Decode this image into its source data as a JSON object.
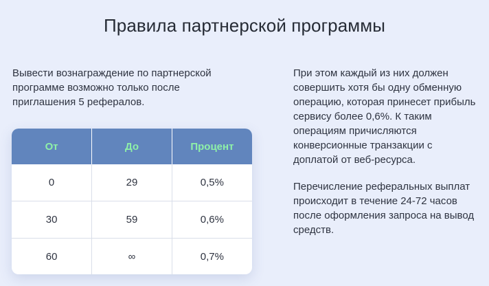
{
  "page": {
    "title": "Правила партнерской программы"
  },
  "intro": {
    "text": "Вывести вознаграждение по партнерской программе возможно только после приглашения 5 рефералов."
  },
  "right": {
    "paragraph1": "При этом каждый из них должен совершить хотя бы одну обменную операцию, которая принесет прибыль сервису более 0,6%. К таким операциям причисляются конверсионные транзакции с доплатой от веб-ресурса.",
    "paragraph2": "Перечисление реферальных выплат происходит в течение 24-72 часов после оформления запроса на вывод средств."
  },
  "table": {
    "headers": [
      "От",
      "До",
      "Процент"
    ],
    "rows": [
      [
        "0",
        "29",
        "0,5%"
      ],
      [
        "30",
        "59",
        "0,6%"
      ],
      [
        "60",
        "∞",
        "0,7%"
      ]
    ]
  },
  "colors": {
    "header_bg": "#6185bd",
    "header_text": "#8ef0a8",
    "page_bg": "#e9eefb"
  }
}
